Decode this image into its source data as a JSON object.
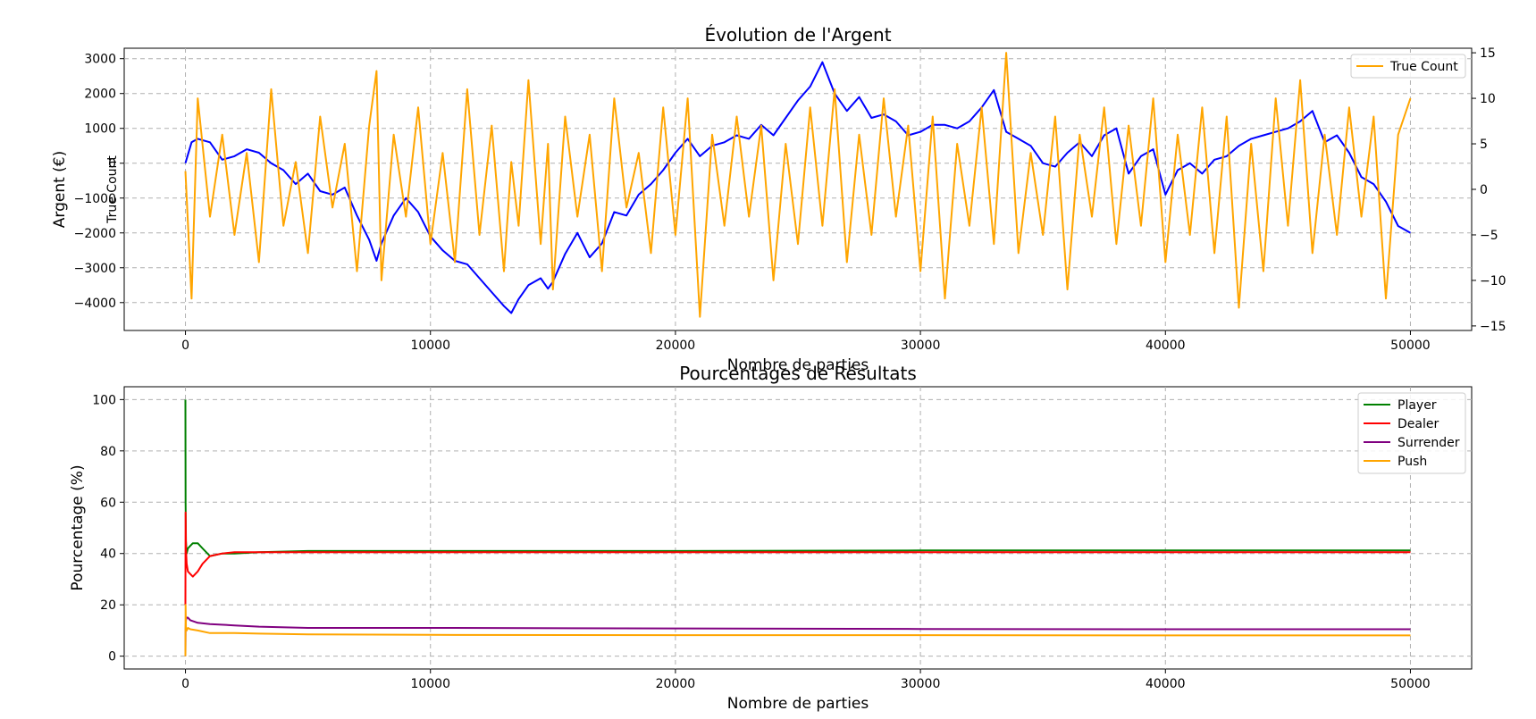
{
  "chart_data": [
    {
      "type": "line",
      "title": "Évolution de l'Argent",
      "xlabel": "Nombre de parties",
      "ylabel": "Argent (€)",
      "y2label": "True Count",
      "xlim": [
        -2500,
        52500
      ],
      "ylim": [
        -4800,
        3300
      ],
      "y2lim": [
        -15.5,
        15.5
      ],
      "xticks": [
        0,
        10000,
        20000,
        30000,
        40000,
        50000
      ],
      "yticks": [
        -4000,
        -3000,
        -2000,
        -1000,
        0,
        1000,
        2000,
        3000
      ],
      "y2ticks": [
        -15,
        -10,
        -5,
        0,
        5,
        10,
        15
      ],
      "grid": true,
      "legend": "top-right",
      "series": [
        {
          "name": "Argent",
          "axis": "left",
          "color": "#0000ff",
          "x": [
            0,
            250,
            500,
            1000,
            1500,
            2000,
            2500,
            3000,
            3500,
            4000,
            4500,
            5000,
            5500,
            6000,
            6500,
            7000,
            7500,
            7800,
            8000,
            8500,
            9000,
            9500,
            10000,
            10500,
            11000,
            11500,
            12000,
            12500,
            13000,
            13300,
            13600,
            14000,
            14500,
            14800,
            15000,
            15500,
            16000,
            16500,
            17000,
            17500,
            18000,
            18500,
            19000,
            19500,
            20000,
            20500,
            21000,
            21500,
            22000,
            22500,
            23000,
            23500,
            24000,
            24500,
            25000,
            25500,
            26000,
            26500,
            27000,
            27500,
            28000,
            28500,
            29000,
            29500,
            30000,
            30500,
            31000,
            31500,
            32000,
            32500,
            33000,
            33500,
            34000,
            34500,
            35000,
            35500,
            36000,
            36500,
            37000,
            37500,
            38000,
            38500,
            39000,
            39500,
            40000,
            40500,
            41000,
            41500,
            42000,
            42500,
            43000,
            43500,
            44000,
            44500,
            45000,
            45500,
            46000,
            46500,
            47000,
            47500,
            48000,
            48500,
            49000,
            49500,
            50000
          ],
          "y": [
            0,
            600,
            700,
            600,
            100,
            200,
            400,
            300,
            0,
            -200,
            -600,
            -300,
            -800,
            -900,
            -700,
            -1500,
            -2200,
            -2800,
            -2300,
            -1500,
            -1000,
            -1400,
            -2100,
            -2500,
            -2800,
            -2900,
            -3300,
            -3700,
            -4100,
            -4300,
            -3900,
            -3500,
            -3300,
            -3600,
            -3400,
            -2600,
            -2000,
            -2700,
            -2300,
            -1400,
            -1500,
            -900,
            -600,
            -200,
            300,
            700,
            200,
            500,
            600,
            800,
            700,
            1100,
            800,
            1300,
            1800,
            2200,
            2900,
            2000,
            1500,
            1900,
            1300,
            1400,
            1200,
            800,
            900,
            1100,
            1100,
            1000,
            1200,
            1600,
            2100,
            900,
            700,
            500,
            0,
            -100,
            300,
            600,
            200,
            800,
            1000,
            -300,
            200,
            400,
            -900,
            -200,
            0,
            -300,
            100,
            200,
            500,
            700,
            800,
            900,
            1000,
            1200,
            1500,
            600,
            800,
            300,
            -400,
            -600,
            -1100,
            -1800,
            -2000
          ]
        },
        {
          "name": "True Count",
          "axis": "right",
          "color": "#ffa500",
          "x": [
            0,
            250,
            500,
            1000,
            1500,
            2000,
            2500,
            3000,
            3500,
            4000,
            4500,
            5000,
            5500,
            6000,
            6500,
            7000,
            7500,
            7800,
            8000,
            8500,
            9000,
            9500,
            10000,
            10500,
            11000,
            11500,
            12000,
            12500,
            13000,
            13300,
            13600,
            14000,
            14500,
            14800,
            15000,
            15500,
            16000,
            16500,
            17000,
            17500,
            18000,
            18500,
            19000,
            19500,
            20000,
            20500,
            21000,
            21500,
            22000,
            22500,
            23000,
            23500,
            24000,
            24500,
            25000,
            25500,
            26000,
            26500,
            27000,
            27500,
            28000,
            28500,
            29000,
            29500,
            30000,
            30500,
            31000,
            31500,
            32000,
            32500,
            33000,
            33500,
            34000,
            34500,
            35000,
            35500,
            36000,
            36500,
            37000,
            37500,
            38000,
            38500,
            39000,
            39500,
            40000,
            40500,
            41000,
            41500,
            42000,
            42500,
            43000,
            43500,
            44000,
            44500,
            45000,
            45500,
            46000,
            46500,
            47000,
            47500,
            48000,
            48500,
            49000,
            49500,
            50000
          ],
          "y": [
            2,
            -12,
            10,
            -3,
            6,
            -5,
            4,
            -8,
            11,
            -4,
            3,
            -7,
            8,
            -2,
            5,
            -9,
            7,
            13,
            -10,
            6,
            -3,
            9,
            -6,
            4,
            -8,
            11,
            -5,
            7,
            -9,
            3,
            -4,
            12,
            -6,
            5,
            -11,
            8,
            -3,
            6,
            -9,
            10,
            -2,
            4,
            -7,
            9,
            -5,
            10,
            -14,
            6,
            -4,
            8,
            -3,
            7,
            -10,
            5,
            -6,
            9,
            -4,
            11,
            -8,
            6,
            -5,
            10,
            -3,
            7,
            -9,
            8,
            -12,
            5,
            -4,
            9,
            -6,
            15,
            -7,
            4,
            -5,
            8,
            -11,
            6,
            -3,
            9,
            -6,
            7,
            -4,
            10,
            -8,
            6,
            -5,
            9,
            -7,
            8,
            -13,
            5,
            -9,
            10,
            -4,
            12,
            -7,
            6,
            -5,
            9,
            -3,
            8,
            -12,
            6,
            10
          ]
        }
      ]
    },
    {
      "type": "line",
      "title": "Pourcentages de Résultats",
      "xlabel": "Nombre de parties",
      "ylabel": "Pourcentage (%)",
      "xlim": [
        -2500,
        52500
      ],
      "ylim": [
        -5,
        105
      ],
      "xticks": [
        0,
        10000,
        20000,
        30000,
        40000,
        50000
      ],
      "yticks": [
        0,
        20,
        40,
        60,
        80,
        100
      ],
      "grid": true,
      "legend": "top-right",
      "series": [
        {
          "name": "Player",
          "color": "#008000",
          "x": [
            0,
            5,
            20,
            50,
            100,
            200,
            300,
            500,
            700,
            1000,
            1500,
            2000,
            3000,
            5000,
            10000,
            20000,
            30000,
            40000,
            50000
          ],
          "y": [
            100,
            60,
            45,
            40,
            42,
            43,
            44,
            44,
            42,
            39,
            40,
            40,
            40.5,
            41,
            41,
            41,
            41.2,
            41.2,
            41.2
          ],
          "color_key": "player"
        },
        {
          "name": "Dealer",
          "color": "#ff0000",
          "x": [
            0,
            5,
            20,
            50,
            100,
            200,
            300,
            500,
            700,
            1000,
            1500,
            2000,
            3000,
            5000,
            10000,
            20000,
            30000,
            40000,
            50000
          ],
          "y": [
            20,
            56,
            42,
            36,
            33,
            32,
            31,
            33,
            36,
            39,
            40,
            40.5,
            40.5,
            40.5,
            40.5,
            40.5,
            40.5,
            40.5,
            40.5
          ]
        },
        {
          "name": "Surrender",
          "color": "#800080",
          "x": [
            0,
            5,
            20,
            50,
            100,
            200,
            500,
            1000,
            2000,
            3000,
            5000,
            10000,
            20000,
            30000,
            40000,
            50000
          ],
          "y": [
            0,
            10,
            14,
            15,
            15,
            14,
            13,
            12.5,
            12,
            11.5,
            11,
            11,
            10.8,
            10.6,
            10.5,
            10.5
          ]
        },
        {
          "name": "Push",
          "color": "#ffa500",
          "x": [
            0,
            5,
            20,
            50,
            100,
            200,
            500,
            1000,
            2000,
            3000,
            5000,
            10000,
            20000,
            30000,
            40000,
            50000
          ],
          "y": [
            0,
            20,
            11,
            10,
            11,
            10.5,
            10,
            9,
            9,
            8.8,
            8.5,
            8.3,
            8.2,
            8.2,
            8.1,
            8.1
          ]
        }
      ]
    }
  ]
}
